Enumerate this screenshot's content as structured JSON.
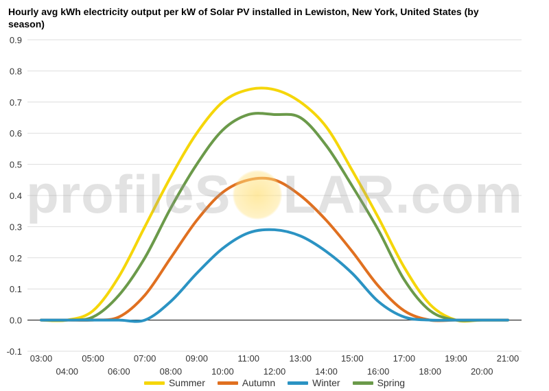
{
  "chart_data": {
    "type": "line",
    "title": "Hourly avg kWh electricity output per kW of Solar PV installed in Lewiston, New York, United States (by season)",
    "x": [
      "03:00",
      "04:00",
      "05:00",
      "06:00",
      "07:00",
      "08:00",
      "09:00",
      "10:00",
      "11:00",
      "12:00",
      "13:00",
      "14:00",
      "15:00",
      "16:00",
      "17:00",
      "18:00",
      "19:00",
      "20:00",
      "21:00"
    ],
    "ylim": [
      -0.1,
      0.9
    ],
    "yticks": [
      "-0.1",
      "0.0",
      "0.1",
      "0.2",
      "0.3",
      "0.4",
      "0.5",
      "0.6",
      "0.7",
      "0.8",
      "0.9"
    ],
    "grid": true,
    "legend_position": "bottom",
    "series": [
      {
        "name": "Summer",
        "color": "#f5d60a",
        "values": [
          0.0,
          0.0,
          0.03,
          0.14,
          0.3,
          0.46,
          0.6,
          0.7,
          0.74,
          0.74,
          0.7,
          0.62,
          0.48,
          0.33,
          0.17,
          0.05,
          0.0,
          0.0,
          0.0
        ]
      },
      {
        "name": "Autumn",
        "color": "#e07020",
        "values": [
          0.0,
          0.0,
          0.0,
          0.01,
          0.08,
          0.2,
          0.32,
          0.41,
          0.45,
          0.45,
          0.4,
          0.32,
          0.22,
          0.11,
          0.03,
          0.0,
          0.0,
          0.0,
          0.0
        ]
      },
      {
        "name": "Winter",
        "color": "#2b93c3",
        "values": [
          0.0,
          0.0,
          0.0,
          0.0,
          0.0,
          0.06,
          0.15,
          0.23,
          0.28,
          0.29,
          0.27,
          0.22,
          0.15,
          0.06,
          0.01,
          0.0,
          0.0,
          0.0,
          0.0
        ]
      },
      {
        "name": "Spring",
        "color": "#6b9a4a",
        "values": [
          0.0,
          0.0,
          0.01,
          0.08,
          0.2,
          0.36,
          0.5,
          0.61,
          0.66,
          0.66,
          0.65,
          0.56,
          0.43,
          0.29,
          0.13,
          0.03,
          0.0,
          0.0,
          0.0
        ]
      }
    ]
  },
  "watermark": {
    "left": "profileS",
    "right": "LAR.com"
  }
}
